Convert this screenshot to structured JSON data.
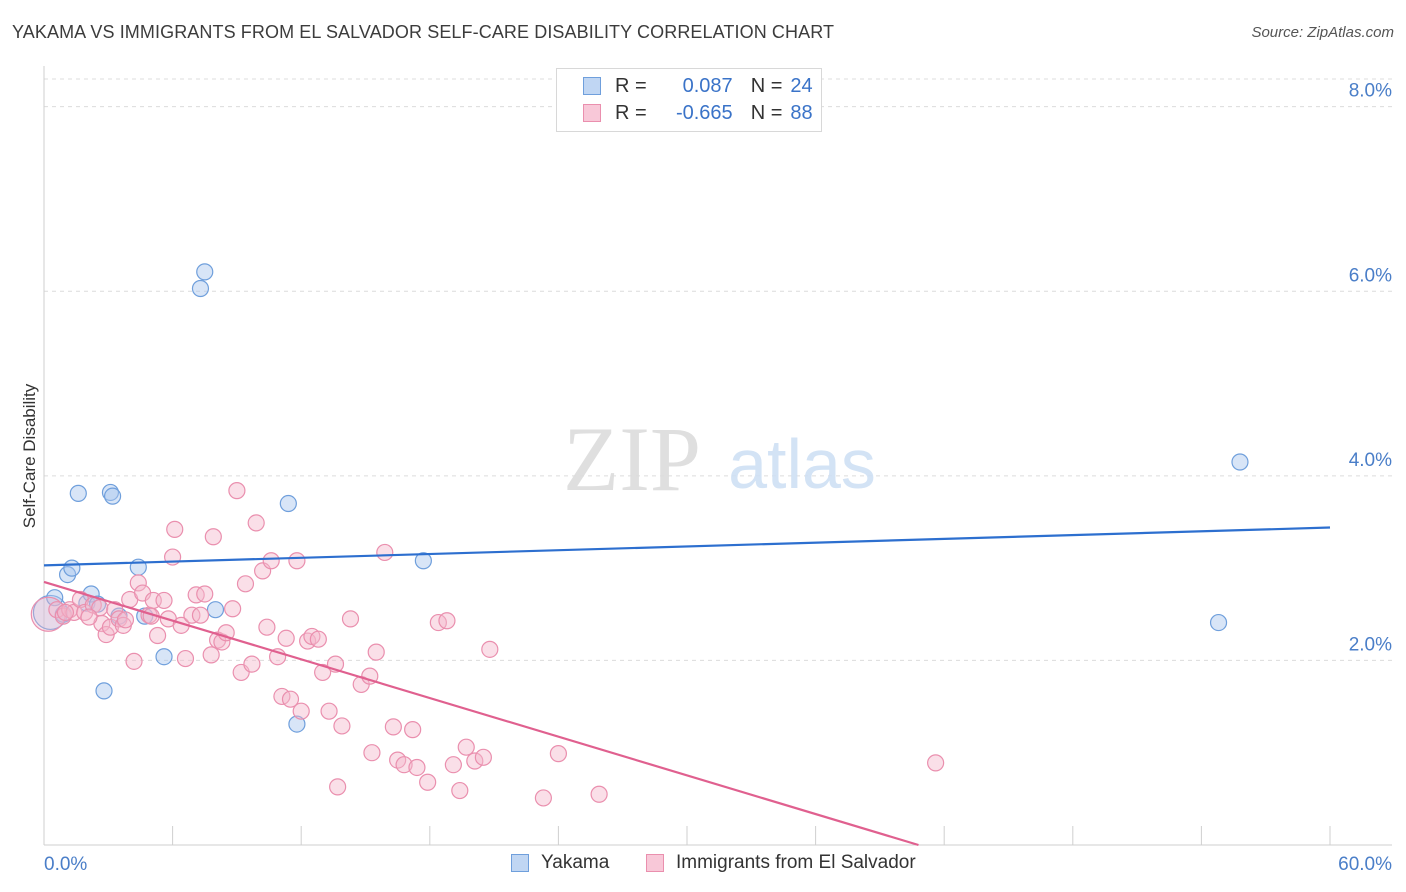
{
  "title": "YAKAMA VS IMMIGRANTS FROM EL SALVADOR SELF-CARE DISABILITY CORRELATION CHART",
  "source": "Source: ZipAtlas.com",
  "watermark": {
    "zip": "ZIP",
    "atlas": "atlas"
  },
  "legend": {
    "series1": {
      "r_label": "R =",
      "r_value": "0.087",
      "n_label": "N =",
      "n_value": "24"
    },
    "series2": {
      "r_label": "R =",
      "r_value": "-0.665",
      "n_label": "N =",
      "n_value": "88"
    }
  },
  "colors": {
    "blue_fill": "#a8c6ee",
    "blue_stroke": "#6f9fdc",
    "blue_line": "#2d6fcf",
    "pink_fill": "#f4b8cc",
    "pink_stroke": "#ea8fae",
    "pink_line": "#e0608f",
    "tick_text": "#4a7ec8",
    "grid": "#dcdcdc"
  },
  "chart_data": {
    "type": "scatter",
    "title": "YAKAMA VS IMMIGRANTS FROM EL SALVADOR SELF-CARE DISABILITY CORRELATION CHART",
    "xlabel": "",
    "ylabel": "Self-Care Disability",
    "xlim": [
      0,
      60
    ],
    "ylim": [
      0,
      8.3
    ],
    "x_tick_labels": [
      "0.0%",
      "60.0%"
    ],
    "y_ticks": [
      2,
      4,
      6,
      8
    ],
    "y_tick_labels": [
      "2.0%",
      "4.0%",
      "6.0%",
      "8.0%"
    ],
    "legend_position": "top-center",
    "series": [
      {
        "name": "Yakama",
        "r": 0.087,
        "n": 24,
        "trend": {
          "x": [
            0,
            60
          ],
          "y": [
            3.03,
            3.44
          ]
        },
        "points": [
          {
            "x": 0.3,
            "y": 2.52,
            "big": true
          },
          {
            "x": 0.5,
            "y": 2.68
          },
          {
            "x": 1.1,
            "y": 2.93
          },
          {
            "x": 1.3,
            "y": 3.0
          },
          {
            "x": 1.6,
            "y": 3.81
          },
          {
            "x": 2.0,
            "y": 2.62
          },
          {
            "x": 2.2,
            "y": 2.72
          },
          {
            "x": 2.5,
            "y": 2.61
          },
          {
            "x": 2.8,
            "y": 1.67
          },
          {
            "x": 3.1,
            "y": 3.82
          },
          {
            "x": 3.2,
            "y": 3.78
          },
          {
            "x": 3.5,
            "y": 2.48
          },
          {
            "x": 4.4,
            "y": 3.01
          },
          {
            "x": 4.7,
            "y": 2.48
          },
          {
            "x": 5.6,
            "y": 2.04
          },
          {
            "x": 7.3,
            "y": 6.03
          },
          {
            "x": 7.5,
            "y": 6.21
          },
          {
            "x": 8.0,
            "y": 2.55
          },
          {
            "x": 11.4,
            "y": 3.7
          },
          {
            "x": 11.8,
            "y": 1.31
          },
          {
            "x": 17.7,
            "y": 3.08
          },
          {
            "x": 54.8,
            "y": 2.41
          },
          {
            "x": 55.8,
            "y": 4.15
          },
          {
            "x": 0.9,
            "y": 2.5
          }
        ]
      },
      {
        "name": "Immigrants from El Salvador",
        "r": -0.665,
        "n": 88,
        "trend": {
          "x": [
            0,
            40.8
          ],
          "y": [
            2.85,
            0.0
          ]
        },
        "points": [
          {
            "x": 0.2,
            "y": 2.5,
            "big": true
          },
          {
            "x": 0.6,
            "y": 2.55
          },
          {
            "x": 0.9,
            "y": 2.48
          },
          {
            "x": 1.2,
            "y": 2.55
          },
          {
            "x": 1.4,
            "y": 2.52
          },
          {
            "x": 1.7,
            "y": 2.66
          },
          {
            "x": 1.9,
            "y": 2.52
          },
          {
            "x": 2.3,
            "y": 2.6
          },
          {
            "x": 2.6,
            "y": 2.57
          },
          {
            "x": 2.7,
            "y": 2.4
          },
          {
            "x": 2.9,
            "y": 2.28
          },
          {
            "x": 3.1,
            "y": 2.36
          },
          {
            "x": 3.3,
            "y": 2.55
          },
          {
            "x": 3.5,
            "y": 2.45
          },
          {
            "x": 3.7,
            "y": 2.38
          },
          {
            "x": 3.8,
            "y": 2.44
          },
          {
            "x": 4.0,
            "y": 2.66
          },
          {
            "x": 4.2,
            "y": 1.99
          },
          {
            "x": 4.4,
            "y": 2.84
          },
          {
            "x": 4.6,
            "y": 2.73
          },
          {
            "x": 4.9,
            "y": 2.49
          },
          {
            "x": 5.1,
            "y": 2.65
          },
          {
            "x": 5.3,
            "y": 2.27
          },
          {
            "x": 5.6,
            "y": 2.65
          },
          {
            "x": 5.8,
            "y": 2.45
          },
          {
            "x": 6.0,
            "y": 3.12
          },
          {
            "x": 6.1,
            "y": 3.42
          },
          {
            "x": 6.4,
            "y": 2.38
          },
          {
            "x": 6.6,
            "y": 2.02
          },
          {
            "x": 6.9,
            "y": 2.49
          },
          {
            "x": 7.1,
            "y": 2.71
          },
          {
            "x": 7.3,
            "y": 2.49
          },
          {
            "x": 7.5,
            "y": 2.72
          },
          {
            "x": 7.8,
            "y": 2.06
          },
          {
            "x": 7.9,
            "y": 3.34
          },
          {
            "x": 8.1,
            "y": 2.22
          },
          {
            "x": 8.3,
            "y": 2.2
          },
          {
            "x": 8.5,
            "y": 2.3
          },
          {
            "x": 8.8,
            "y": 2.56
          },
          {
            "x": 9.0,
            "y": 3.84
          },
          {
            "x": 9.2,
            "y": 1.87
          },
          {
            "x": 9.4,
            "y": 2.83
          },
          {
            "x": 9.7,
            "y": 1.96
          },
          {
            "x": 9.9,
            "y": 3.49
          },
          {
            "x": 10.2,
            "y": 2.97
          },
          {
            "x": 10.4,
            "y": 2.36
          },
          {
            "x": 10.6,
            "y": 3.08
          },
          {
            "x": 10.9,
            "y": 2.04
          },
          {
            "x": 11.1,
            "y": 1.61
          },
          {
            "x": 11.3,
            "y": 2.24
          },
          {
            "x": 11.5,
            "y": 1.58
          },
          {
            "x": 11.8,
            "y": 3.08
          },
          {
            "x": 12.0,
            "y": 1.45
          },
          {
            "x": 12.3,
            "y": 2.21
          },
          {
            "x": 12.5,
            "y": 2.26
          },
          {
            "x": 12.8,
            "y": 2.23
          },
          {
            "x": 13.0,
            "y": 1.87
          },
          {
            "x": 13.3,
            "y": 1.45
          },
          {
            "x": 13.6,
            "y": 1.96
          },
          {
            "x": 13.9,
            "y": 1.29
          },
          {
            "x": 13.7,
            "y": 0.63
          },
          {
            "x": 14.3,
            "y": 2.45
          },
          {
            "x": 14.8,
            "y": 1.74
          },
          {
            "x": 15.2,
            "y": 1.83
          },
          {
            "x": 15.5,
            "y": 2.09
          },
          {
            "x": 15.9,
            "y": 3.17
          },
          {
            "x": 15.3,
            "y": 1.0
          },
          {
            "x": 16.3,
            "y": 1.28
          },
          {
            "x": 16.5,
            "y": 0.92
          },
          {
            "x": 16.8,
            "y": 0.87
          },
          {
            "x": 17.2,
            "y": 1.25
          },
          {
            "x": 17.4,
            "y": 0.84
          },
          {
            "x": 17.9,
            "y": 0.68
          },
          {
            "x": 18.4,
            "y": 2.41
          },
          {
            "x": 18.8,
            "y": 2.43
          },
          {
            "x": 19.1,
            "y": 0.87
          },
          {
            "x": 19.4,
            "y": 0.59
          },
          {
            "x": 19.7,
            "y": 1.06
          },
          {
            "x": 20.1,
            "y": 0.91
          },
          {
            "x": 20.5,
            "y": 0.95
          },
          {
            "x": 20.8,
            "y": 2.12
          },
          {
            "x": 23.3,
            "y": 0.51
          },
          {
            "x": 24.0,
            "y": 0.99
          },
          {
            "x": 25.9,
            "y": 0.55
          },
          {
            "x": 41.6,
            "y": 0.89
          },
          {
            "x": 2.1,
            "y": 2.47
          },
          {
            "x": 1.0,
            "y": 2.52
          },
          {
            "x": 5.0,
            "y": 2.48
          }
        ]
      }
    ]
  }
}
